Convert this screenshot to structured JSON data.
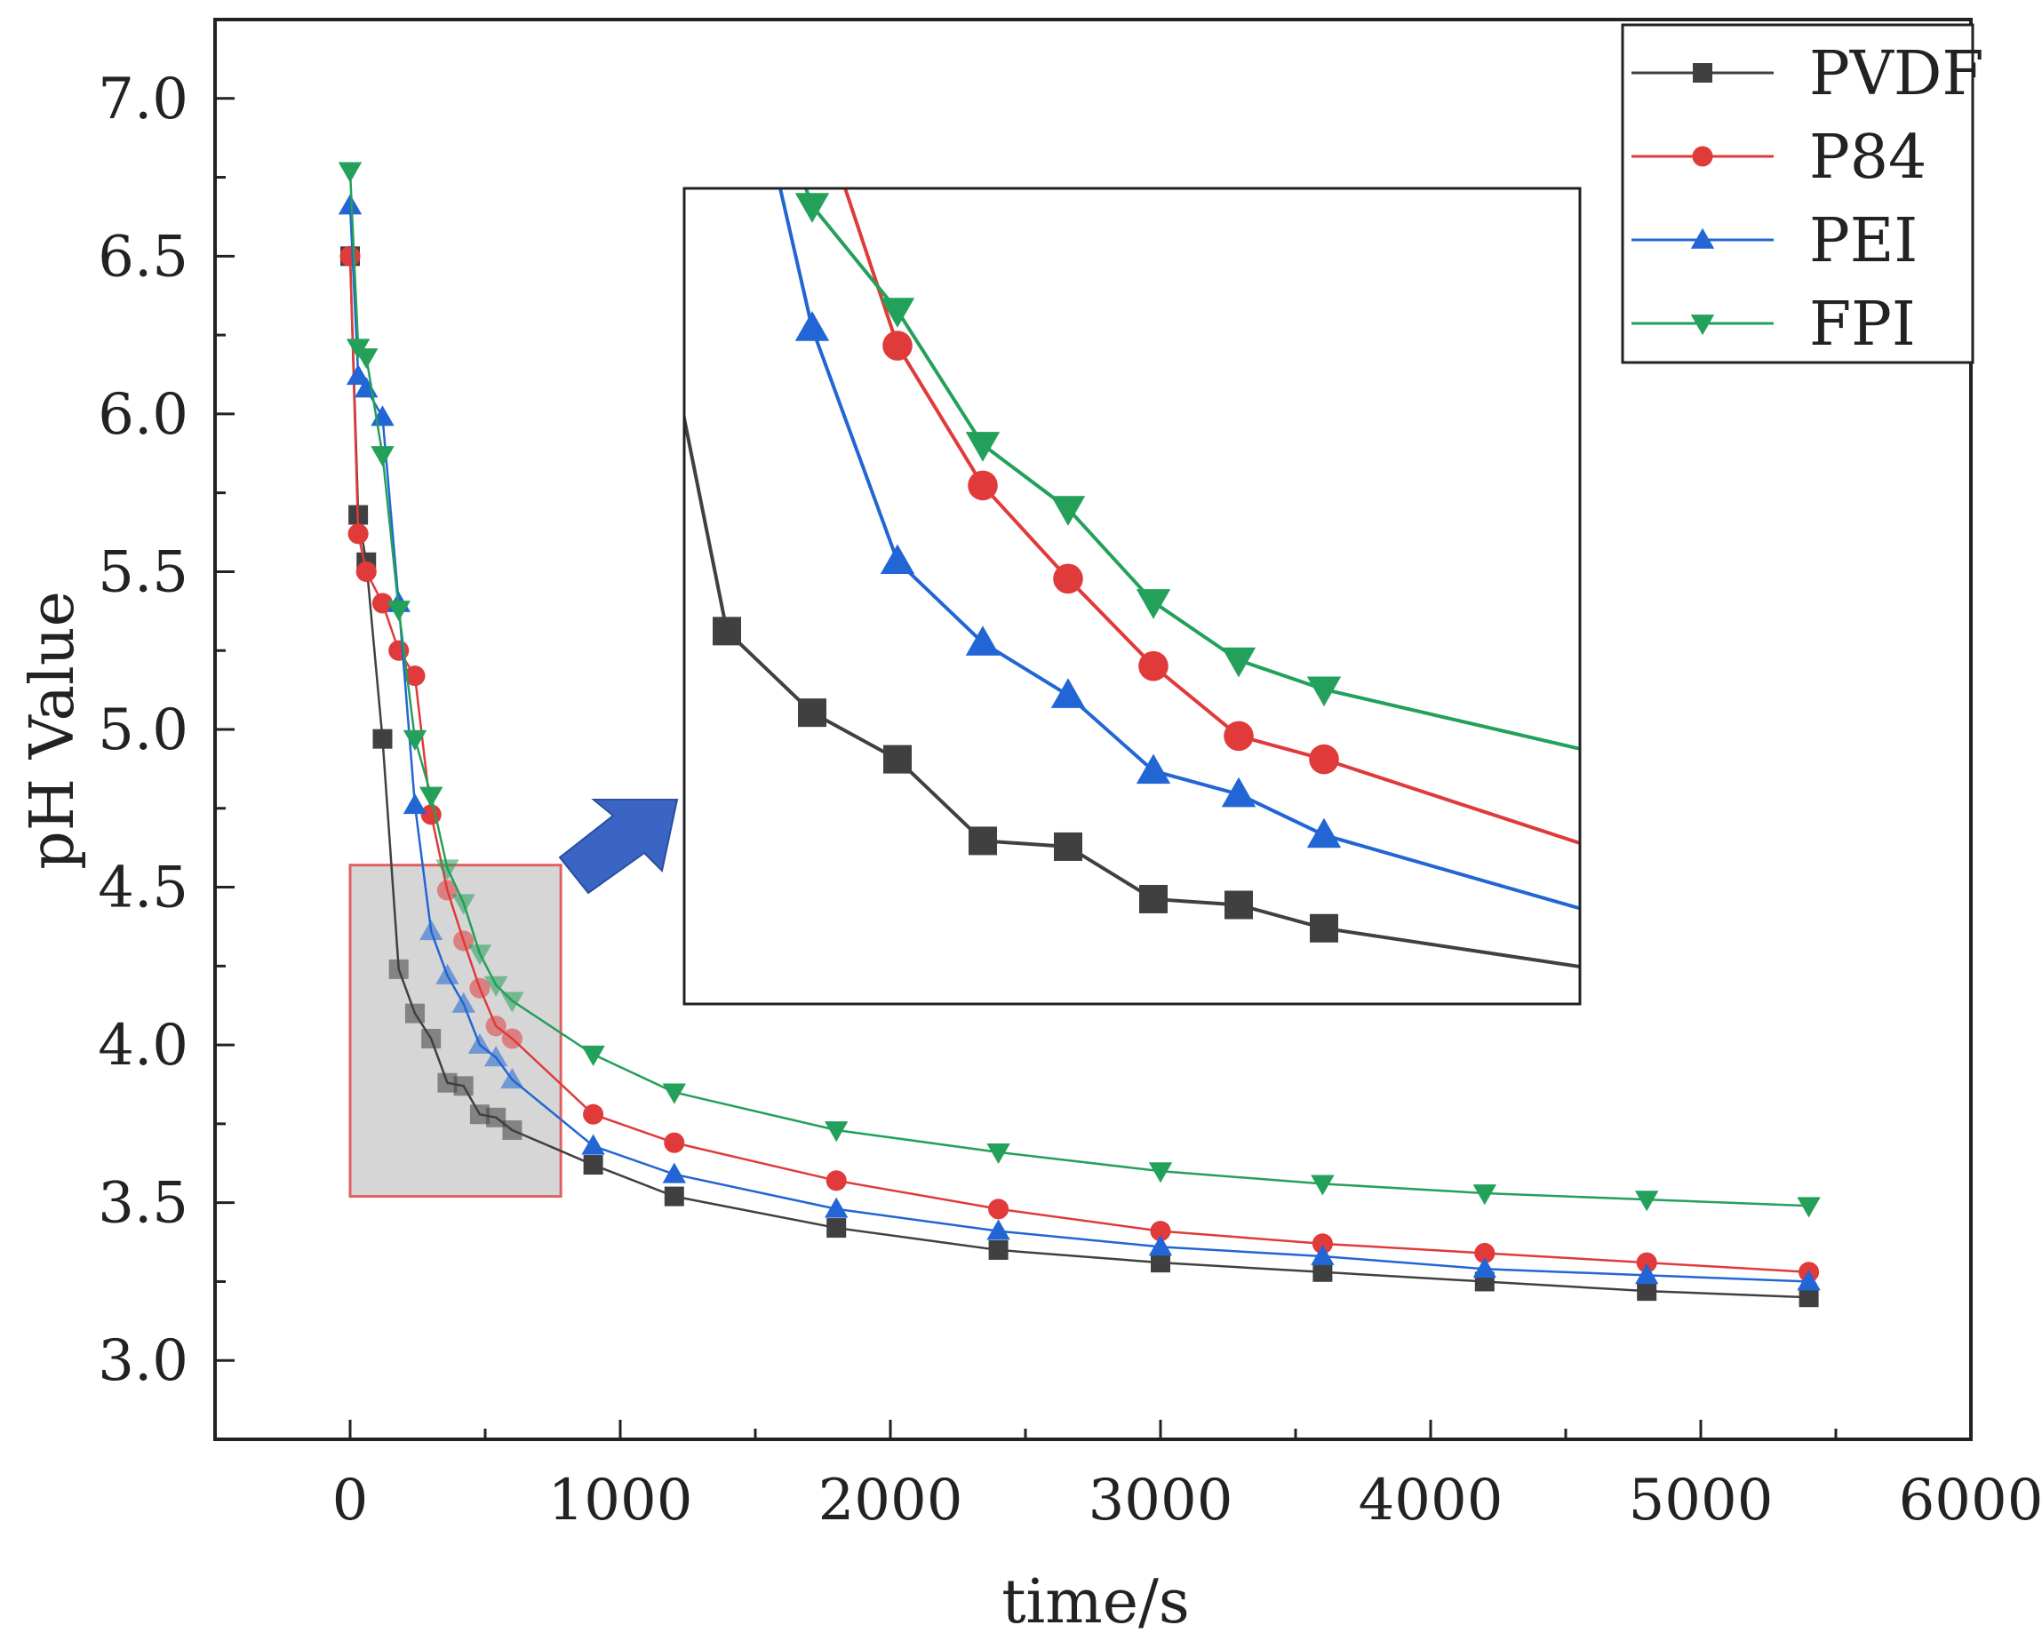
{
  "chart_data": {
    "type": "line",
    "title": "",
    "xlabel": "time/s",
    "ylabel": "pH Value",
    "xlim": [
      -500,
      6000
    ],
    "ylim": [
      2.75,
      7.25
    ],
    "xticks": [
      0,
      1000,
      2000,
      3000,
      4000,
      5000,
      6000
    ],
    "yticks": [
      3.0,
      3.5,
      4.0,
      4.5,
      5.0,
      5.5,
      6.0,
      6.5,
      7.0
    ],
    "xtick_labels": [
      "0",
      "1000",
      "2000",
      "3000",
      "4000",
      "5000",
      "6000"
    ],
    "ytick_labels": [
      "3.0",
      "3.5",
      "4.0",
      "4.5",
      "5.0",
      "5.5",
      "6.0",
      "6.5",
      "7.0"
    ],
    "legend_position": "top-right",
    "series": [
      {
        "name": "PVDF",
        "color": "#404040",
        "marker": "square",
        "x": [
          0,
          30,
          60,
          120,
          180,
          240,
          300,
          360,
          420,
          480,
          540,
          600,
          900,
          1200,
          1800,
          2400,
          3000,
          3600,
          4200,
          4800,
          5400
        ],
        "y": [
          6.5,
          5.68,
          5.53,
          4.97,
          4.24,
          4.1,
          4.02,
          3.88,
          3.87,
          3.78,
          3.77,
          3.73,
          3.62,
          3.52,
          3.42,
          3.35,
          3.31,
          3.28,
          3.25,
          3.22,
          3.2
        ]
      },
      {
        "name": "P84",
        "color": "#e03a3a",
        "marker": "circle",
        "x": [
          0,
          30,
          60,
          120,
          180,
          240,
          300,
          360,
          420,
          480,
          540,
          600,
          900,
          1200,
          1800,
          2400,
          3000,
          3600,
          4200,
          4800,
          5400
        ],
        "y": [
          6.5,
          5.62,
          5.5,
          5.4,
          5.25,
          5.17,
          4.73,
          4.49,
          4.33,
          4.18,
          4.06,
          4.02,
          3.78,
          3.69,
          3.57,
          3.48,
          3.41,
          3.37,
          3.34,
          3.31,
          3.28
        ]
      },
      {
        "name": "PEI",
        "color": "#2166d4",
        "marker": "triangle-up",
        "x": [
          0,
          30,
          60,
          120,
          180,
          240,
          300,
          360,
          420,
          480,
          540,
          600,
          900,
          1200,
          1800,
          2400,
          3000,
          3600,
          4200,
          4800,
          5400
        ],
        "y": [
          6.66,
          6.12,
          6.08,
          5.99,
          5.4,
          4.76,
          4.36,
          4.22,
          4.13,
          4.0,
          3.96,
          3.89,
          3.68,
          3.59,
          3.48,
          3.41,
          3.36,
          3.33,
          3.29,
          3.27,
          3.25
        ]
      },
      {
        "name": "FPI",
        "color": "#23a05a",
        "marker": "triangle-down",
        "x": [
          0,
          30,
          60,
          120,
          180,
          240,
          300,
          360,
          420,
          480,
          540,
          600,
          900,
          1200,
          1800,
          2400,
          3000,
          3600,
          4200,
          4800,
          5400
        ],
        "y": [
          6.77,
          6.21,
          6.18,
          5.87,
          5.38,
          4.97,
          4.79,
          4.56,
          4.45,
          4.29,
          4.19,
          4.14,
          3.97,
          3.85,
          3.73,
          3.66,
          3.6,
          3.56,
          3.53,
          3.51,
          3.49
        ]
      }
    ],
    "highlight_region": {
      "x_range": [
        0,
        780
      ],
      "y_range": [
        3.52,
        4.57
      ]
    },
    "inset": {
      "description": "zoom of highlighted region",
      "x_range": [
        150,
        780
      ],
      "y_range": [
        3.6,
        5.0
      ]
    }
  }
}
